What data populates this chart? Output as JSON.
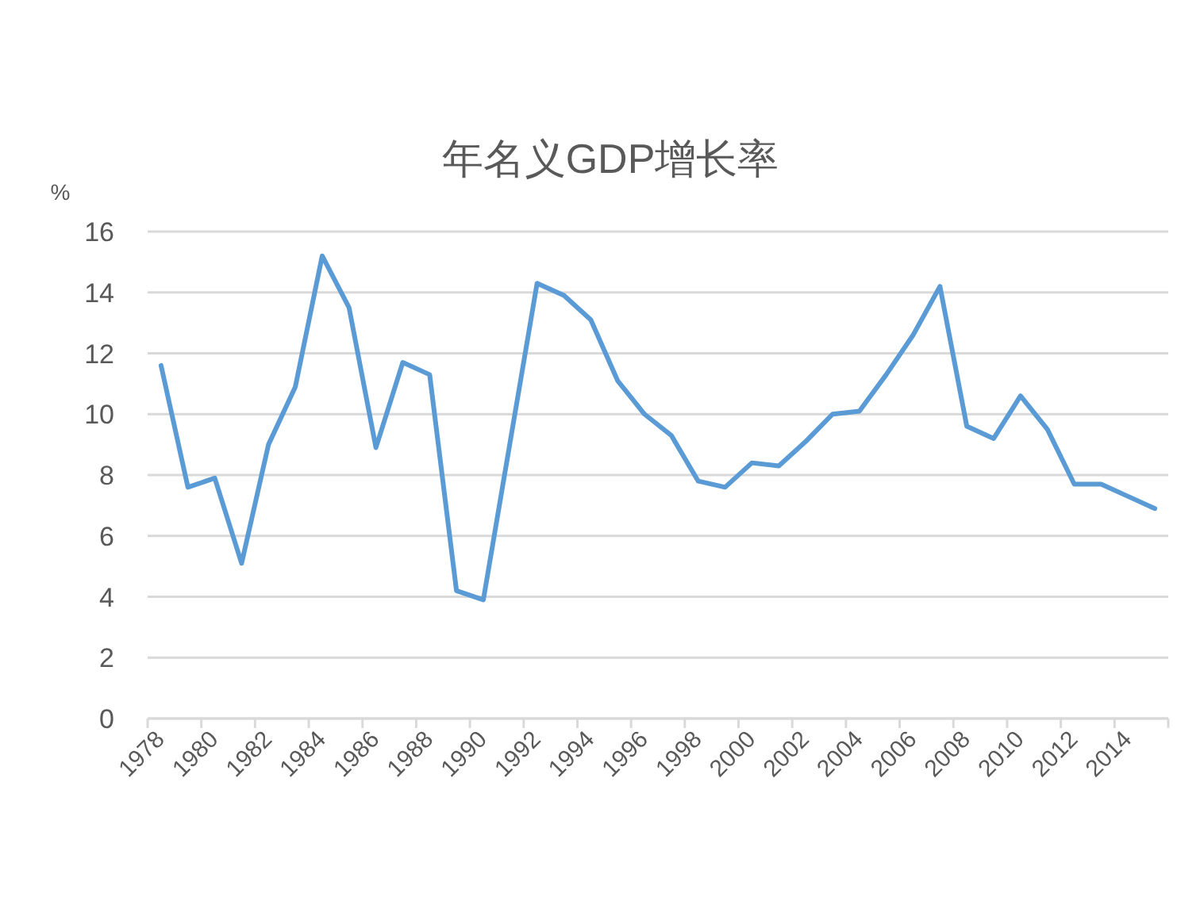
{
  "chart_data": {
    "type": "line",
    "title": "年名义GDP增长率",
    "ylabel": "%",
    "categories": [
      "1978",
      null,
      "1980",
      null,
      "1982",
      null,
      "1984",
      null,
      "1986",
      null,
      "1988",
      null,
      "1990",
      null,
      "1992",
      null,
      "1994",
      null,
      "1996",
      null,
      "1998",
      null,
      "2000",
      null,
      "2002",
      null,
      "2004",
      null,
      "2006",
      null,
      "2008",
      null,
      "2010",
      null,
      "2012",
      null,
      "2014",
      null
    ],
    "values": [
      11.6,
      7.6,
      7.9,
      5.1,
      9.0,
      10.9,
      15.2,
      13.5,
      8.9,
      11.7,
      11.3,
      4.2,
      3.9,
      9.1,
      14.3,
      13.9,
      13.1,
      11.1,
      10.0,
      9.3,
      7.8,
      7.6,
      8.4,
      8.3,
      9.1,
      10.0,
      10.1,
      11.3,
      12.6,
      14.2,
      9.6,
      9.2,
      10.6,
      9.5,
      7.7,
      7.7,
      7.3,
      6.9
    ],
    "color": "#5b9bd5",
    "ylim": [
      0,
      16
    ],
    "yticks": [
      0,
      2,
      4,
      6,
      8,
      10,
      12,
      14,
      16
    ],
    "grid": "y"
  }
}
